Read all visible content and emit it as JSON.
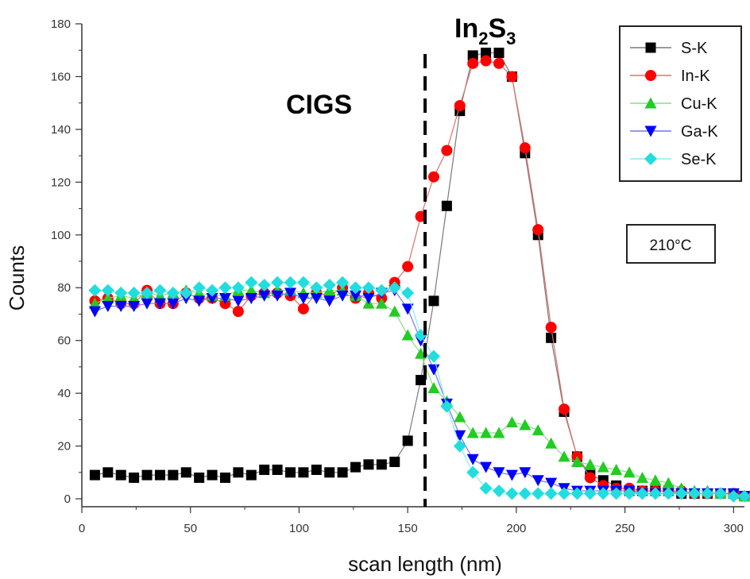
{
  "chart_data": {
    "type": "scatter",
    "xlabel": "scan length (nm)",
    "ylabel": "Counts",
    "xlim": [
      0,
      305
    ],
    "ylim": [
      -3,
      180
    ],
    "xticks": [
      0,
      50,
      100,
      150,
      200,
      250,
      300
    ],
    "yticks": [
      0,
      20,
      40,
      60,
      80,
      100,
      120,
      140,
      160,
      180
    ],
    "legend_position": "top-right",
    "annotations": {
      "left_region": "CIGS",
      "right_region_main": "In",
      "right_region_sub1": "2",
      "right_region_mid": "S",
      "right_region_sub2": "3",
      "temperature_box": "210°C"
    },
    "boundary_x": 158,
    "series": [
      {
        "name": "S-K",
        "color": "#000000",
        "line_color": "#7a7a7a",
        "marker": "square",
        "x": [
          6,
          12,
          18,
          24,
          30,
          36,
          42,
          48,
          54,
          60,
          66,
          72,
          78,
          84,
          90,
          96,
          102,
          108,
          114,
          120,
          126,
          132,
          138,
          144,
          150,
          156,
          162,
          168,
          174,
          180,
          186,
          192,
          198,
          204,
          210,
          216,
          222,
          228,
          234,
          240,
          246,
          252,
          258,
          264,
          270,
          276,
          282,
          288,
          294,
          300,
          305
        ],
        "y": [
          9,
          10,
          9,
          8,
          9,
          9,
          9,
          10,
          8,
          9,
          8,
          10,
          9,
          11,
          11,
          10,
          10,
          11,
          10,
          10,
          12,
          13,
          13,
          14,
          22,
          45,
          75,
          111,
          147,
          168,
          169,
          169,
          160,
          131,
          100,
          61,
          33,
          16,
          9,
          7,
          5,
          3,
          3,
          3,
          3,
          2,
          2,
          2,
          2,
          2,
          1
        ]
      },
      {
        "name": "In-K",
        "color": "#ff0000",
        "line_color": "#e07070",
        "marker": "circle",
        "x": [
          6,
          12,
          18,
          24,
          30,
          36,
          42,
          48,
          54,
          60,
          66,
          72,
          78,
          84,
          90,
          96,
          102,
          108,
          114,
          120,
          126,
          132,
          138,
          144,
          150,
          156,
          162,
          168,
          174,
          180,
          186,
          192,
          198,
          204,
          210,
          216,
          222,
          228,
          234,
          240,
          246,
          252,
          258,
          264,
          270,
          276,
          282,
          288,
          294,
          300,
          305
        ],
        "y": [
          75,
          76,
          74,
          74,
          79,
          74,
          74,
          78,
          76,
          76,
          74,
          71,
          77,
          78,
          78,
          77,
          72,
          78,
          77,
          80,
          76,
          78,
          76,
          82,
          88,
          107,
          122,
          132,
          149,
          165,
          166,
          165,
          160,
          133,
          102,
          65,
          34,
          16,
          8,
          5,
          4,
          4,
          3,
          3,
          3,
          3,
          2,
          2,
          2,
          2,
          1
        ]
      },
      {
        "name": "Cu-K",
        "color": "#22cc22",
        "line_color": "#88dd88",
        "marker": "triangle-up",
        "x": [
          6,
          12,
          18,
          24,
          30,
          36,
          42,
          48,
          54,
          60,
          66,
          72,
          78,
          84,
          90,
          96,
          102,
          108,
          114,
          120,
          126,
          132,
          138,
          144,
          150,
          156,
          162,
          168,
          174,
          180,
          186,
          192,
          198,
          204,
          210,
          216,
          222,
          228,
          234,
          240,
          246,
          252,
          258,
          264,
          270,
          276,
          282,
          288,
          294,
          300,
          305
        ],
        "y": [
          74,
          76,
          77,
          76,
          78,
          77,
          78,
          79,
          78,
          77,
          77,
          79,
          79,
          78,
          79,
          79,
          78,
          78,
          79,
          79,
          77,
          74,
          74,
          71,
          62,
          55,
          42,
          37,
          31,
          25,
          25,
          25,
          29,
          28,
          26,
          21,
          16,
          14,
          13,
          12,
          11,
          10,
          8,
          7,
          6,
          4,
          3,
          3,
          2,
          2,
          1
        ]
      },
      {
        "name": "Ga-K",
        "color": "#0000ff",
        "line_color": "#7777ee",
        "marker": "triangle-down",
        "x": [
          6,
          12,
          18,
          24,
          30,
          36,
          42,
          48,
          54,
          60,
          66,
          72,
          78,
          84,
          90,
          96,
          102,
          108,
          114,
          120,
          126,
          132,
          138,
          144,
          150,
          156,
          162,
          168,
          174,
          180,
          186,
          192,
          198,
          204,
          210,
          216,
          222,
          228,
          234,
          240,
          246,
          252,
          258,
          264,
          270,
          276,
          282,
          288,
          294,
          300,
          305
        ],
        "y": [
          71,
          73,
          73,
          73,
          74,
          74,
          74,
          76,
          75,
          76,
          76,
          75,
          76,
          77,
          77,
          78,
          76,
          76,
          75,
          77,
          77,
          76,
          78,
          79,
          72,
          60,
          49,
          36,
          24,
          15,
          12,
          10,
          9,
          10,
          7,
          6,
          4,
          3,
          3,
          3,
          3,
          3,
          2,
          2,
          2,
          2,
          2,
          2,
          2,
          2,
          1
        ]
      },
      {
        "name": "Se-K",
        "color": "#22dddd",
        "line_color": "#88eeee",
        "marker": "diamond",
        "x": [
          6,
          12,
          18,
          24,
          30,
          36,
          42,
          48,
          54,
          60,
          66,
          72,
          78,
          84,
          90,
          96,
          102,
          108,
          114,
          120,
          126,
          132,
          138,
          144,
          150,
          156,
          162,
          168,
          174,
          180,
          186,
          192,
          198,
          204,
          210,
          216,
          222,
          228,
          234,
          240,
          246,
          252,
          258,
          264,
          270,
          276,
          282,
          288,
          294,
          300,
          305
        ],
        "y": [
          79,
          79,
          78,
          78,
          78,
          79,
          78,
          78,
          80,
          79,
          80,
          80,
          82,
          81,
          82,
          82,
          82,
          80,
          81,
          82,
          80,
          80,
          79,
          80,
          78,
          62,
          54,
          35,
          20,
          10,
          4,
          3,
          2,
          2,
          2,
          2,
          2,
          2,
          2,
          2,
          2,
          2,
          2,
          2,
          2,
          2,
          2,
          2,
          2,
          1,
          1
        ]
      }
    ]
  }
}
